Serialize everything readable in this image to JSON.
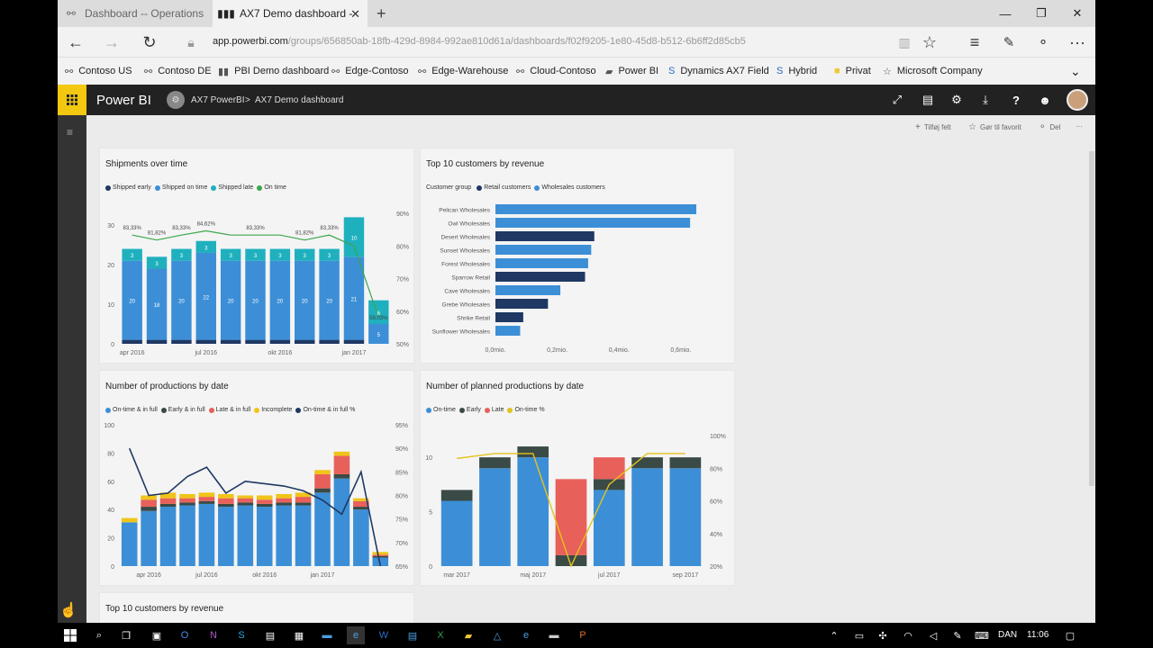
{
  "browser": {
    "tabs": [
      {
        "label": "Dashboard -- Operations",
        "icon": "powerbi-group-icon"
      },
      {
        "label": "AX7 Demo dashboard -",
        "icon": "powerbi-chart-icon"
      }
    ],
    "url_domain": "app.powerbi.com",
    "url_path": "/groups/656850ab-18fb-429d-8984-992ae810d61a/dashboards/f02f9205-1e80-45d8-b512-6b6ff2d85cb5",
    "favorites": [
      "Contoso US",
      "Contoso DE",
      "PBI Demo dashboard",
      "Edge-Contoso",
      "Edge-Warehouse",
      "Cloud-Contoso",
      "Power BI",
      "Dynamics AX7 Field",
      "Hybrid",
      "Privat",
      "Microsoft Company"
    ]
  },
  "powerbi": {
    "app_name": "Power BI",
    "breadcrumb": {
      "workspace": "AX7 PowerBI",
      "sep": ">",
      "dashboard": "AX7 Demo dashboard"
    },
    "actions": {
      "add_tile": "Tilføj felt",
      "favorite": "Gør til favorit",
      "share": "Del",
      "more": "···"
    }
  },
  "tiles": {
    "shipments": {
      "title": "Shipments over time"
    },
    "top10": {
      "title": "Top 10 customers by revenue"
    },
    "productions": {
      "title": "Number of productions by date"
    },
    "planned": {
      "title": "Number of planned productions by date"
    },
    "top10b": {
      "title": "Top 10 customers by revenue"
    }
  },
  "chart_data": [
    {
      "type": "bar",
      "title": "Shipments over time",
      "legend": [
        "Shipped early",
        "Shipped on time",
        "Shipped late",
        "On time"
      ],
      "colors": {
        "Shipped early": "#1f3864",
        "Shipped on time": "#3c8fd6",
        "Shipped late": "#1fb0be",
        "On time": "#3aa74a"
      },
      "x_ticks": [
        "apr 2016",
        "jul 2016",
        "okt 2016",
        "jan 2017"
      ],
      "y_ticks": [
        "0",
        "10",
        "20",
        "30"
      ],
      "y2_ticks": [
        "50%",
        "60%",
        "70%",
        "80%",
        "90%"
      ],
      "ylim": [
        0,
        33
      ],
      "y2lim": [
        50,
        90
      ],
      "series": [
        {
          "name": "Shipped early",
          "values": [
            1,
            1,
            1,
            1,
            1,
            1,
            1,
            1,
            1,
            1,
            0
          ]
        },
        {
          "name": "Shipped on time",
          "values": [
            20,
            18,
            20,
            22,
            20,
            20,
            20,
            20,
            20,
            21,
            5
          ]
        },
        {
          "name": "Shipped late",
          "values": [
            3,
            3,
            3,
            3,
            3,
            3,
            3,
            3,
            3,
            10,
            6
          ]
        },
        {
          "name": "On time",
          "values": [
            83.33,
            81.82,
            83.33,
            84.62,
            83.33,
            83.33,
            83.33,
            81.82,
            83.33,
            80,
            58.03
          ]
        }
      ],
      "bar_labels_on_time": [
        "20",
        "18",
        "20",
        "22",
        "20",
        "20",
        "20",
        "20",
        "20",
        "21",
        "5"
      ],
      "bar_labels_late": [
        "3",
        "3",
        "3",
        "3",
        "3",
        "3",
        "3",
        "3",
        "3",
        "10",
        "6"
      ],
      "line_labels": [
        "83,33%",
        "81,82%",
        "83,33%",
        "84,62%",
        "",
        "83,33%",
        "",
        "81,82%",
        "83,33%",
        "",
        "58,03%"
      ]
    },
    {
      "type": "bar",
      "orientation": "horizontal",
      "title": "Top 10 customers by revenue",
      "legend_title": "Customer group",
      "legend": [
        "Retail customers",
        "Wholesales customers"
      ],
      "colors": {
        "Retail customers": "#1f3864",
        "Wholesales customers": "#3c8fd6"
      },
      "categories": [
        "Pelican Wholesales",
        "Owl Wholesales",
        "Desert Wholesales",
        "Sunset Wholesales",
        "Forest Wholesales",
        "Sparrow Retail",
        "Cave Wholesales",
        "Grebe Wholesales",
        "Shrike Retail",
        "Sunflower Wholesales"
      ],
      "values": [
        0.65,
        0.63,
        0.32,
        0.31,
        0.3,
        0.29,
        0.21,
        0.17,
        0.09,
        0.08
      ],
      "groups": [
        "Wholesales customers",
        "Wholesales customers",
        "Retail customers",
        "Wholesales customers",
        "Wholesales customers",
        "Retail customers",
        "Wholesales customers",
        "Retail customers",
        "Retail customers",
        "Wholesales customers"
      ],
      "x_ticks": [
        "0,0mio.",
        "0,2mio.",
        "0,4mio.",
        "0,6mio."
      ],
      "xlim": [
        0,
        0.72
      ]
    },
    {
      "type": "bar",
      "title": "Number of productions by date",
      "legend": [
        "On-time & in full",
        "Early & in full",
        "Late & in full",
        "Incomplete",
        "On-time & in full %"
      ],
      "colors": {
        "On-time & in full": "#3c8fd6",
        "Early & in full": "#3a4a46",
        "Late & in full": "#e8605a",
        "Incomplete": "#f0c419",
        "On-time & in full %": "#1f3864"
      },
      "x_ticks": [
        "apr 2016",
        "jul 2016",
        "okt 2016",
        "jan 2017"
      ],
      "y_ticks": [
        "0",
        "20",
        "40",
        "60",
        "80",
        "100"
      ],
      "y2_ticks": [
        "65%",
        "70%",
        "75%",
        "80%",
        "85%",
        "90%",
        "95%"
      ],
      "ylim": [
        0,
        100
      ],
      "y2lim": [
        65,
        95
      ],
      "series": [
        {
          "name": "On-time & in full",
          "values": [
            31,
            39,
            42,
            43,
            44,
            42,
            43,
            42,
            43,
            43,
            52,
            62,
            40,
            6
          ]
        },
        {
          "name": "Early & in full",
          "values": [
            0,
            3,
            2,
            2,
            2,
            2,
            2,
            2,
            2,
            2,
            3,
            3,
            2,
            1
          ]
        },
        {
          "name": "Late & in full",
          "values": [
            0,
            5,
            4,
            3,
            3,
            4,
            3,
            3,
            3,
            4,
            10,
            13,
            4,
            1
          ]
        },
        {
          "name": "Incomplete",
          "values": [
            3,
            3,
            4,
            3,
            3,
            3,
            2,
            3,
            3,
            3,
            3,
            3,
            2,
            2
          ]
        },
        {
          "name": "On-time & in full %",
          "values": [
            90,
            80,
            80.5,
            84,
            86,
            80.5,
            83,
            82.5,
            82,
            81,
            79,
            76,
            85,
            65
          ]
        }
      ]
    },
    {
      "type": "bar",
      "title": "Number of planned productions by date",
      "legend": [
        "On-time",
        "Early",
        "Late",
        "On-time %"
      ],
      "colors": {
        "On-time": "#3c8fd6",
        "Early": "#3a4a46",
        "Late": "#e8605a",
        "On-time %": "#e3c21e"
      },
      "x_ticks": [
        "mar 2017",
        "maj 2017",
        "jul 2017",
        "sep 2017"
      ],
      "y_ticks": [
        "0",
        "5",
        "10"
      ],
      "y2_ticks": [
        "20%",
        "40%",
        "60%",
        "80%",
        "100%"
      ],
      "ylim": [
        0,
        12
      ],
      "y2lim": [
        20,
        100
      ],
      "series": [
        {
          "name": "On-time",
          "values": [
            6,
            9,
            10,
            0,
            7,
            9,
            9
          ]
        },
        {
          "name": "Early",
          "values": [
            1,
            1,
            1,
            1,
            1,
            1,
            1
          ]
        },
        {
          "name": "Late",
          "values": [
            0,
            0,
            0,
            7,
            2,
            0,
            0
          ]
        },
        {
          "name": "On-time %",
          "values": [
            86,
            89,
            89,
            20,
            70,
            89,
            89
          ]
        }
      ]
    }
  ],
  "taskbar": {
    "lang": "DAN",
    "time": "11:06"
  }
}
